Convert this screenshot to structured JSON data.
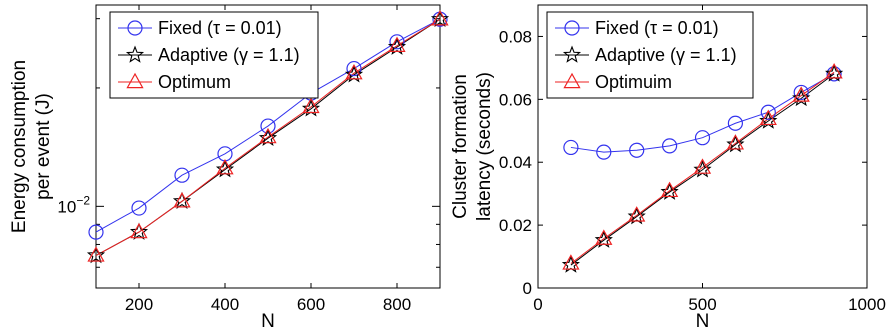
{
  "chart_data": [
    {
      "type": "line",
      "title": "",
      "xlabel": "N",
      "ylabel_lines": [
        "Energy consumption",
        "per event  (J)"
      ],
      "x_scale": "linear",
      "y_scale": "log",
      "xlim": [
        100,
        900
      ],
      "ylim": [
        0.0062,
        0.0325
      ],
      "x_ticks": [
        200,
        400,
        600,
        800
      ],
      "x_tick_labels": [
        "200",
        "400",
        "600",
        "800"
      ],
      "y_major_tick": 0.01,
      "y_major_tick_base": "10",
      "y_major_tick_exp": "−2",
      "grid": false,
      "legend_position": "top-left",
      "x": [
        100,
        200,
        300,
        400,
        500,
        600,
        700,
        800,
        900
      ],
      "series": [
        {
          "name": "Fixed (τ = 0.01)",
          "color": "#3333ee",
          "marker": "circle",
          "values": [
            0.0086,
            0.0099,
            0.012,
            0.0136,
            0.016,
            0.0194,
            0.0224,
            0.0262,
            0.0299
          ]
        },
        {
          "name": "Adaptive (γ = 1.1)",
          "color": "#000000",
          "marker": "star",
          "values": [
            0.0075,
            0.0086,
            0.0103,
            0.0124,
            0.0149,
            0.0177,
            0.0216,
            0.0254,
            0.0299
          ]
        },
        {
          "name": "Optimum",
          "color": "#ee2222",
          "marker": "triangle",
          "values": [
            0.0075,
            0.0086,
            0.0103,
            0.0125,
            0.015,
            0.0179,
            0.0218,
            0.0256,
            0.0299
          ]
        }
      ]
    },
    {
      "type": "line",
      "title": "",
      "xlabel": "N",
      "ylabel_lines": [
        "Cluster formation",
        "latency (seconds)"
      ],
      "x_scale": "linear",
      "y_scale": "linear",
      "xlim": [
        0,
        1000
      ],
      "ylim": [
        0,
        0.09
      ],
      "x_ticks": [
        0,
        500,
        1000
      ],
      "x_tick_labels": [
        "0",
        "500",
        "1000"
      ],
      "y_ticks": [
        0,
        0.02,
        0.04,
        0.06,
        0.08
      ],
      "y_tick_labels": [
        "0",
        "0.02",
        "0.04",
        "0.06",
        "0.08"
      ],
      "grid": false,
      "legend_position": "top-left",
      "x": [
        100,
        200,
        300,
        400,
        500,
        600,
        700,
        800,
        900
      ],
      "series": [
        {
          "name": "Fixed (τ = 0.01)",
          "color": "#3333ee",
          "marker": "circle",
          "values": [
            0.0447,
            0.0432,
            0.0438,
            0.0452,
            0.0478,
            0.0524,
            0.0559,
            0.0622,
            0.0681
          ]
        },
        {
          "name": "Adaptive (γ = 1.1)",
          "color": "#000000",
          "marker": "star",
          "values": [
            0.0073,
            0.0152,
            0.0227,
            0.0305,
            0.0376,
            0.0456,
            0.0531,
            0.0603,
            0.0681
          ]
        },
        {
          "name": "Optimuim",
          "color": "#ee2222",
          "marker": "triangle",
          "values": [
            0.0078,
            0.0157,
            0.0231,
            0.0309,
            0.0383,
            0.046,
            0.0538,
            0.0612,
            0.0686
          ]
        }
      ]
    }
  ]
}
